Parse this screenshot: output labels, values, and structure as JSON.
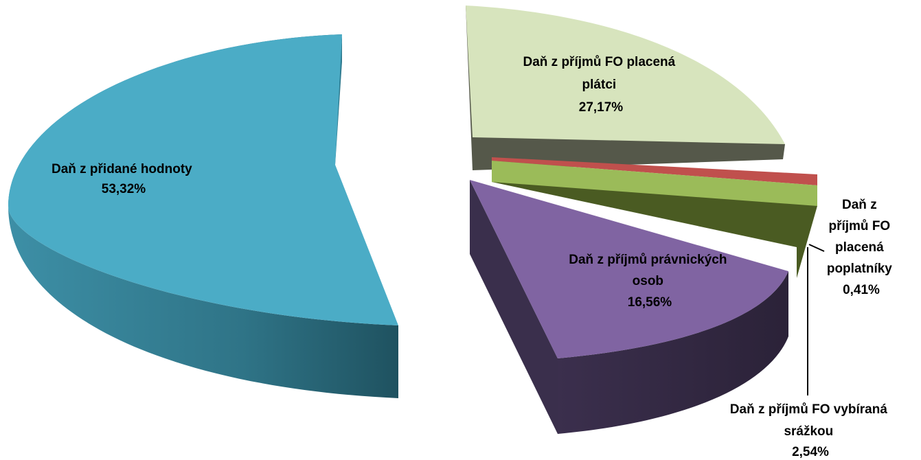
{
  "chart_data": {
    "type": "pie",
    "style": "3d-exploded",
    "slices": [
      {
        "label": "Daň z přidané hodnoty",
        "value": 53.32,
        "display": "53,32%",
        "color": "#4BACC6"
      },
      {
        "label": "Daň z příjmů FO placená plátci",
        "value": 27.17,
        "display": "27,17%",
        "color": "#D7E4BD"
      },
      {
        "label": "Daň z příjmů FO placená poplatníky",
        "value": 0.41,
        "display": "0,41%",
        "color": "#C0504D"
      },
      {
        "label": "Daň z příjmů FO vybíraná srážkou",
        "value": 2.54,
        "display": "2,54%",
        "color": "#9BBB59"
      },
      {
        "label": "Daň z příjmů právnických osob",
        "value": 16.56,
        "display": "16,56%",
        "color": "#8064A2"
      }
    ]
  },
  "labels": {
    "dph": {
      "lines": [
        "Daň z přidané hodnoty",
        "53,32%"
      ]
    },
    "fo_platci": {
      "lines": [
        "Daň z příjmů FO placená",
        "plátci",
        "27,17%"
      ]
    },
    "fo_poplatniky": {
      "lines": [
        "Daň z",
        "příjmů FO",
        "placená",
        "poplatníky",
        "0,41%"
      ]
    },
    "fo_srazkou": {
      "lines": [
        "Daň z příjmů FO vybíraná",
        "srážkou",
        "2,54%"
      ]
    },
    "ppo": {
      "lines": [
        "Daň z příjmů právnických",
        "osob",
        "16,56%"
      ]
    }
  }
}
